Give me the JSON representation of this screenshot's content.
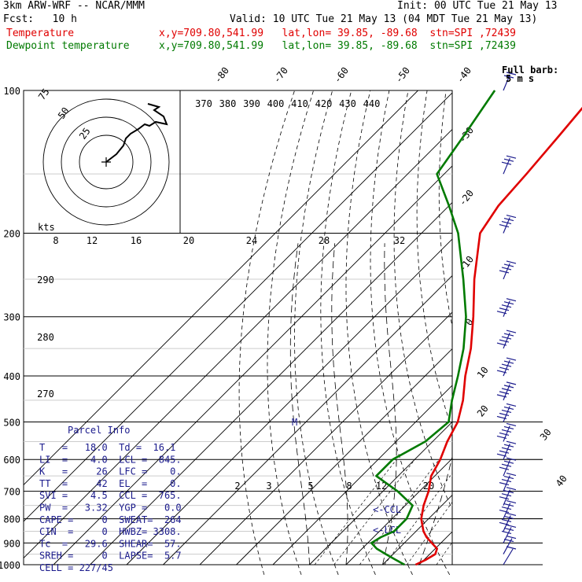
{
  "header": {
    "model": "3km ARW-WRF -- NCAR/MMM",
    "init": "Init: 00 UTC Tue 21 May 13",
    "fcst": "Fcst:   10 h",
    "valid": "Valid: 10 UTC Tue 21 May 13 (04 MDT Tue 21 May 13)",
    "temp_label": "Temperature",
    "temp_info": "x,y=709.80,541.99   lat,lon= 39.85, -89.68  stn=SPI ,72439",
    "dew_label": "Dewpoint temperature",
    "dew_info": "x,y=709.80,541.99   lat,lon= 39.85, -89.68  stn=SPI ,72439"
  },
  "colors": {
    "temperature": "#e00000",
    "dewpoint": "#007a00",
    "parcel": "#1a1a8c"
  },
  "barb_legend": {
    "line1": "Full barb:",
    "line2": "5 m s"
  },
  "pressure_labels": [
    "100",
    "200",
    "300",
    "400",
    "500",
    "600",
    "700",
    "800",
    "900",
    "1000"
  ],
  "theta_labels": [
    "370",
    "380",
    "390",
    "400",
    "410",
    "420",
    "430",
    "440"
  ],
  "temp_labels": [
    "-80",
    "-70",
    "-60",
    "-50",
    "-40",
    "-30",
    "-20",
    "-10",
    "0",
    "10",
    "20",
    "30",
    "40"
  ],
  "hodo": {
    "units": "kts",
    "ring_labels": [
      "75",
      "50",
      "25"
    ],
    "speed_labels": [
      "8",
      "12",
      "16",
      "20",
      "24",
      "28",
      "32"
    ]
  },
  "theta_low_labels": [
    "290",
    "280",
    "270"
  ],
  "mixing_labels": [
    "2",
    "3",
    "5",
    "8",
    "12",
    "20"
  ],
  "markers": {
    "m": "M",
    "ccl": "<-CCL",
    "lcl": "<-LCL"
  },
  "parcel": {
    "title": "Parcel Info",
    "rows": [
      "T   =   18.0  Td =  16.1",
      "LI  =    4.0  LCL =  845.",
      "K   =     26  LFC =    0.",
      "TT  =     42  EL  =    0.",
      "SVI =    4.5  CCL =  765.",
      "PW  =   3.32  YGP =   0.0",
      "CAPE =     0  SWEAT=  264",
      "CIN  =     0  HWBZ= 3308.",
      "Tc  =   29.6  SHEAR=  57.",
      "SREH =     0  LAPSE=  5.7",
      "CELL = 227/45"
    ]
  },
  "chart_data": {
    "type": "line",
    "title": "",
    "xlabel": "",
    "ylabel": "",
    "y_axis": "pressure (hPa), log scale, inverted",
    "ylim": [
      1000,
      100
    ],
    "x_ticks_deg_c": [
      -80,
      -70,
      -60,
      -50,
      -40,
      -30,
      -20,
      -10,
      0,
      10,
      20,
      30,
      40
    ],
    "series": [
      {
        "name": "Temperature",
        "unit": "C",
        "p": [
          1000,
          975,
          950,
          925,
          900,
          875,
          850,
          800,
          750,
          700,
          650,
          600,
          550,
          500,
          450,
          400,
          350,
          300,
          250,
          200,
          175,
          150,
          125,
          100
        ],
        "t": [
          19.0,
          20.5,
          21.5,
          20.5,
          17.5,
          14.5,
          12.0,
          8.0,
          5.0,
          2.5,
          -1.0,
          -3.0,
          -6.0,
          -8.5,
          -13.0,
          -19.0,
          -25.0,
          -33.0,
          -43.0,
          -54.0,
          -56.5,
          -57.5,
          -59.0,
          -61.0
        ]
      },
      {
        "name": "Dewpoint temperature",
        "unit": "C",
        "p": [
          1000,
          975,
          950,
          925,
          900,
          875,
          850,
          800,
          750,
          700,
          650,
          600,
          550,
          500,
          450,
          400,
          350,
          300,
          250,
          200,
          175,
          150,
          125,
          100
        ],
        "t": [
          16.0,
          12.0,
          8.0,
          4.0,
          1.0,
          2.0,
          4.0,
          4.0,
          2.0,
          -6.0,
          -16.0,
          -16.0,
          -12.0,
          -11.0,
          -16.0,
          -21.0,
          -27.0,
          -35.0,
          -46.0,
          -60.0,
          -70.0,
          -82.0,
          -85.0,
          -89.0
        ]
      }
    ],
    "winds": {
      "unit": "m s-1",
      "p": [
        1000,
        950,
        900,
        850,
        800,
        750,
        700,
        650,
        600,
        550,
        500,
        450,
        400,
        350,
        300,
        250,
        200,
        150,
        100
      ],
      "dir": [
        210,
        220,
        230,
        240,
        250,
        255,
        260,
        260,
        260,
        265,
        265,
        265,
        270,
        270,
        270,
        275,
        275,
        280,
        280
      ],
      "spd": [
        5,
        10,
        15,
        20,
        20,
        20,
        20,
        20,
        25,
        25,
        25,
        25,
        25,
        25,
        25,
        20,
        20,
        15,
        10
      ]
    }
  }
}
